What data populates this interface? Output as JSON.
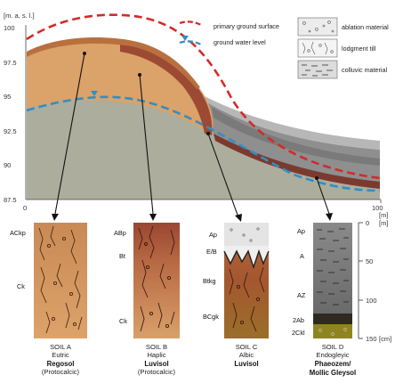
{
  "y_axis": {
    "unit": "[m. a. s. l.]",
    "ticks": [
      "100",
      "97.5",
      "95",
      "92.5",
      "90",
      "87.5"
    ]
  },
  "x_axis": {
    "ticks": [
      "0",
      "100"
    ],
    "unit": "[m]"
  },
  "legend_lines": {
    "primary_surface": "primary ground surface",
    "water_level": "ground water level"
  },
  "legend_materials": {
    "ablation": "ablation material",
    "lodgment": "lodgment till",
    "colluvic": "colluvic material"
  },
  "depth_scale": {
    "ticks": [
      "0",
      "50",
      "100",
      "150"
    ],
    "unit_top": "[m]",
    "unit_bottom": "[cm]"
  },
  "soils": [
    {
      "horizons": [
        "ACkp",
        "Ck"
      ],
      "caption": [
        "SOIL A",
        "Eutric",
        "Regosol",
        "(Protocalcic)"
      ]
    },
    {
      "horizons": [
        "ABp",
        "Bt",
        "Ck"
      ],
      "caption": [
        "SOIL B",
        "Haplic",
        "Luvisol",
        "(Protocalcic)"
      ]
    },
    {
      "horizons": [
        "Ap",
        "E/B",
        "Btkg",
        "BCgk"
      ],
      "caption": [
        "SOIL C",
        "Albic",
        "Luvisol"
      ]
    },
    {
      "horizons": [
        "Ap",
        "A",
        "AZ",
        "2Ab",
        "2Ckl"
      ],
      "caption": [
        "SOIL D",
        "Endogleyic",
        "Phaeozem/",
        "Mollic Gleysol"
      ]
    }
  ],
  "colors": {
    "primary_surface": "#d42a2a",
    "water_level": "#2f8fc4",
    "till": "#a9aa98",
    "soil_orange": "#d99a62",
    "soil_brown": "#9c4a33",
    "colluvium": "#8c8c8c"
  }
}
